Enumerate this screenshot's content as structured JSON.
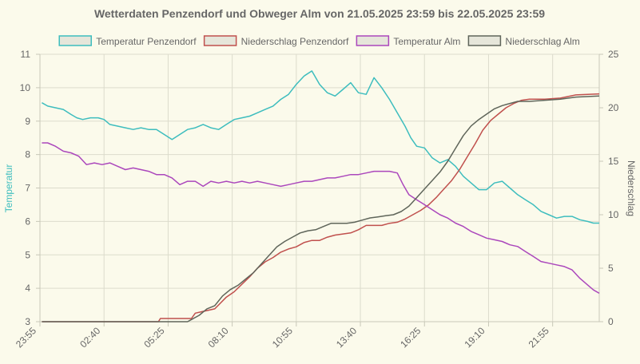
{
  "chart_data": {
    "type": "line",
    "title": "Wetterdaten Penzendorf und Obweger Alm von 21.05.2025 23:59 bis 22.05.2025 23:59",
    "ylabel_left": "Temperatur",
    "ylabel_right": "Niederschlag",
    "ylim_left": [
      3,
      11
    ],
    "yticks_left": [
      "3",
      "4",
      "5",
      "6",
      "7",
      "8",
      "9",
      "10",
      "11"
    ],
    "ylim_right": [
      0,
      25
    ],
    "yticks_right": [
      "0",
      "5",
      "10",
      "15",
      "20",
      "25"
    ],
    "xlim": [
      0,
      1440
    ],
    "x_ticks": [
      {
        "label": "23:55",
        "x": 0
      },
      {
        "label": "02:40",
        "x": 165
      },
      {
        "label": "05:25",
        "x": 330
      },
      {
        "label": "08:10",
        "x": 495
      },
      {
        "label": "10:55",
        "x": 660
      },
      {
        "label": "13:40",
        "x": 825
      },
      {
        "label": "16:25",
        "x": 990
      },
      {
        "label": "19:10",
        "x": 1155
      },
      {
        "label": "21:55",
        "x": 1320
      }
    ],
    "x_unit": "minutes after 23:55",
    "grid": true,
    "legend_position": "top",
    "series": [
      {
        "name": "Temperatur Penzendorf",
        "axis": "left",
        "color": "#3dbdbe",
        "points": [
          [
            5,
            9.55
          ],
          [
            20,
            9.45
          ],
          [
            40,
            9.4
          ],
          [
            60,
            9.35
          ],
          [
            80,
            9.2
          ],
          [
            95,
            9.1
          ],
          [
            110,
            9.05
          ],
          [
            130,
            9.1
          ],
          [
            150,
            9.1
          ],
          [
            165,
            9.05
          ],
          [
            180,
            8.9
          ],
          [
            200,
            8.85
          ],
          [
            220,
            8.8
          ],
          [
            240,
            8.75
          ],
          [
            260,
            8.8
          ],
          [
            280,
            8.75
          ],
          [
            300,
            8.75
          ],
          [
            320,
            8.6
          ],
          [
            340,
            8.45
          ],
          [
            360,
            8.6
          ],
          [
            380,
            8.75
          ],
          [
            400,
            8.8
          ],
          [
            420,
            8.9
          ],
          [
            440,
            8.8
          ],
          [
            460,
            8.75
          ],
          [
            480,
            8.9
          ],
          [
            500,
            9.05
          ],
          [
            520,
            9.1
          ],
          [
            540,
            9.15
          ],
          [
            560,
            9.25
          ],
          [
            580,
            9.35
          ],
          [
            600,
            9.45
          ],
          [
            620,
            9.65
          ],
          [
            640,
            9.8
          ],
          [
            660,
            10.1
          ],
          [
            680,
            10.35
          ],
          [
            700,
            10.5
          ],
          [
            720,
            10.1
          ],
          [
            740,
            9.85
          ],
          [
            760,
            9.75
          ],
          [
            780,
            9.95
          ],
          [
            800,
            10.15
          ],
          [
            820,
            9.85
          ],
          [
            840,
            9.8
          ],
          [
            860,
            10.3
          ],
          [
            880,
            10.0
          ],
          [
            900,
            9.65
          ],
          [
            920,
            9.25
          ],
          [
            940,
            8.85
          ],
          [
            955,
            8.5
          ],
          [
            970,
            8.25
          ],
          [
            990,
            8.2
          ],
          [
            1010,
            7.9
          ],
          [
            1030,
            7.75
          ],
          [
            1050,
            7.85
          ],
          [
            1070,
            7.65
          ],
          [
            1090,
            7.35
          ],
          [
            1110,
            7.15
          ],
          [
            1130,
            6.95
          ],
          [
            1150,
            6.95
          ],
          [
            1170,
            7.15
          ],
          [
            1190,
            7.2
          ],
          [
            1210,
            7.0
          ],
          [
            1230,
            6.8
          ],
          [
            1250,
            6.65
          ],
          [
            1270,
            6.5
          ],
          [
            1290,
            6.3
          ],
          [
            1310,
            6.2
          ],
          [
            1330,
            6.1
          ],
          [
            1350,
            6.15
          ],
          [
            1370,
            6.15
          ],
          [
            1390,
            6.05
          ],
          [
            1410,
            6.0
          ],
          [
            1425,
            5.95
          ],
          [
            1440,
            5.95
          ]
        ]
      },
      {
        "name": "Niederschlag Penzendorf",
        "axis": "right",
        "color": "#c0504d",
        "points": [
          [
            5,
            0
          ],
          [
            305,
            0
          ],
          [
            310,
            0.3
          ],
          [
            390,
            0.3
          ],
          [
            400,
            0.8
          ],
          [
            450,
            1.2
          ],
          [
            480,
            2.3
          ],
          [
            500,
            2.8
          ],
          [
            520,
            3.5
          ],
          [
            540,
            4.2
          ],
          [
            560,
            5.0
          ],
          [
            580,
            5.6
          ],
          [
            600,
            6.0
          ],
          [
            620,
            6.5
          ],
          [
            640,
            6.8
          ],
          [
            660,
            7.0
          ],
          [
            680,
            7.4
          ],
          [
            700,
            7.6
          ],
          [
            720,
            7.6
          ],
          [
            740,
            7.9
          ],
          [
            760,
            8.1
          ],
          [
            780,
            8.2
          ],
          [
            800,
            8.3
          ],
          [
            820,
            8.6
          ],
          [
            840,
            9.0
          ],
          [
            860,
            9.0
          ],
          [
            880,
            9.0
          ],
          [
            900,
            9.2
          ],
          [
            920,
            9.3
          ],
          [
            940,
            9.6
          ],
          [
            960,
            10.0
          ],
          [
            980,
            10.4
          ],
          [
            1000,
            10.9
          ],
          [
            1020,
            11.6
          ],
          [
            1040,
            12.4
          ],
          [
            1060,
            13.2
          ],
          [
            1080,
            14.2
          ],
          [
            1100,
            15.4
          ],
          [
            1120,
            16.6
          ],
          [
            1140,
            17.9
          ],
          [
            1160,
            18.8
          ],
          [
            1180,
            19.4
          ],
          [
            1200,
            20.0
          ],
          [
            1220,
            20.4
          ],
          [
            1240,
            20.7
          ],
          [
            1260,
            20.8
          ],
          [
            1300,
            20.8
          ],
          [
            1340,
            20.9
          ],
          [
            1380,
            21.2
          ],
          [
            1440,
            21.3
          ]
        ]
      },
      {
        "name": "Temperatur Alm",
        "axis": "left",
        "color": "#ab47bc",
        "points": [
          [
            5,
            8.35
          ],
          [
            20,
            8.35
          ],
          [
            40,
            8.25
          ],
          [
            60,
            8.1
          ],
          [
            80,
            8.05
          ],
          [
            100,
            7.95
          ],
          [
            120,
            7.7
          ],
          [
            140,
            7.75
          ],
          [
            160,
            7.7
          ],
          [
            180,
            7.75
          ],
          [
            200,
            7.65
          ],
          [
            220,
            7.55
          ],
          [
            240,
            7.6
          ],
          [
            260,
            7.55
          ],
          [
            280,
            7.5
          ],
          [
            300,
            7.4
          ],
          [
            320,
            7.4
          ],
          [
            340,
            7.3
          ],
          [
            360,
            7.1
          ],
          [
            380,
            7.2
          ],
          [
            400,
            7.2
          ],
          [
            420,
            7.05
          ],
          [
            440,
            7.2
          ],
          [
            460,
            7.15
          ],
          [
            480,
            7.2
          ],
          [
            500,
            7.15
          ],
          [
            520,
            7.2
          ],
          [
            540,
            7.15
          ],
          [
            560,
            7.2
          ],
          [
            580,
            7.15
          ],
          [
            600,
            7.1
          ],
          [
            620,
            7.05
          ],
          [
            640,
            7.1
          ],
          [
            660,
            7.15
          ],
          [
            680,
            7.2
          ],
          [
            700,
            7.2
          ],
          [
            720,
            7.25
          ],
          [
            740,
            7.3
          ],
          [
            760,
            7.3
          ],
          [
            780,
            7.35
          ],
          [
            800,
            7.4
          ],
          [
            820,
            7.4
          ],
          [
            840,
            7.45
          ],
          [
            860,
            7.5
          ],
          [
            880,
            7.5
          ],
          [
            900,
            7.5
          ],
          [
            920,
            7.45
          ],
          [
            935,
            7.1
          ],
          [
            950,
            6.8
          ],
          [
            970,
            6.65
          ],
          [
            990,
            6.5
          ],
          [
            1010,
            6.35
          ],
          [
            1030,
            6.2
          ],
          [
            1050,
            6.1
          ],
          [
            1070,
            5.95
          ],
          [
            1090,
            5.85
          ],
          [
            1110,
            5.7
          ],
          [
            1130,
            5.6
          ],
          [
            1150,
            5.5
          ],
          [
            1170,
            5.45
          ],
          [
            1190,
            5.4
          ],
          [
            1210,
            5.3
          ],
          [
            1230,
            5.25
          ],
          [
            1250,
            5.1
          ],
          [
            1270,
            4.95
          ],
          [
            1290,
            4.8
          ],
          [
            1310,
            4.75
          ],
          [
            1330,
            4.7
          ],
          [
            1350,
            4.65
          ],
          [
            1370,
            4.55
          ],
          [
            1390,
            4.3
          ],
          [
            1410,
            4.1
          ],
          [
            1425,
            3.95
          ],
          [
            1440,
            3.85
          ]
        ]
      },
      {
        "name": "Niederschlag Alm",
        "axis": "right",
        "color": "#5f655a",
        "points": [
          [
            5,
            0
          ],
          [
            380,
            0
          ],
          [
            390,
            0.2
          ],
          [
            410,
            0.6
          ],
          [
            430,
            1.2
          ],
          [
            450,
            1.5
          ],
          [
            470,
            2.4
          ],
          [
            490,
            3.0
          ],
          [
            510,
            3.4
          ],
          [
            530,
            4.0
          ],
          [
            550,
            4.6
          ],
          [
            570,
            5.4
          ],
          [
            590,
            6.2
          ],
          [
            610,
            7.0
          ],
          [
            630,
            7.5
          ],
          [
            650,
            7.9
          ],
          [
            670,
            8.3
          ],
          [
            690,
            8.5
          ],
          [
            710,
            8.6
          ],
          [
            730,
            8.9
          ],
          [
            750,
            9.2
          ],
          [
            770,
            9.2
          ],
          [
            790,
            9.2
          ],
          [
            810,
            9.3
          ],
          [
            830,
            9.5
          ],
          [
            850,
            9.7
          ],
          [
            870,
            9.8
          ],
          [
            890,
            9.9
          ],
          [
            910,
            10.0
          ],
          [
            930,
            10.3
          ],
          [
            950,
            10.8
          ],
          [
            970,
            11.6
          ],
          [
            990,
            12.4
          ],
          [
            1010,
            13.2
          ],
          [
            1030,
            14.0
          ],
          [
            1050,
            15.0
          ],
          [
            1070,
            16.2
          ],
          [
            1090,
            17.4
          ],
          [
            1110,
            18.3
          ],
          [
            1130,
            18.9
          ],
          [
            1150,
            19.4
          ],
          [
            1170,
            19.9
          ],
          [
            1190,
            20.2
          ],
          [
            1210,
            20.4
          ],
          [
            1230,
            20.6
          ],
          [
            1260,
            20.6
          ],
          [
            1300,
            20.7
          ],
          [
            1340,
            20.8
          ],
          [
            1380,
            21.0
          ],
          [
            1440,
            21.1
          ]
        ]
      }
    ]
  }
}
